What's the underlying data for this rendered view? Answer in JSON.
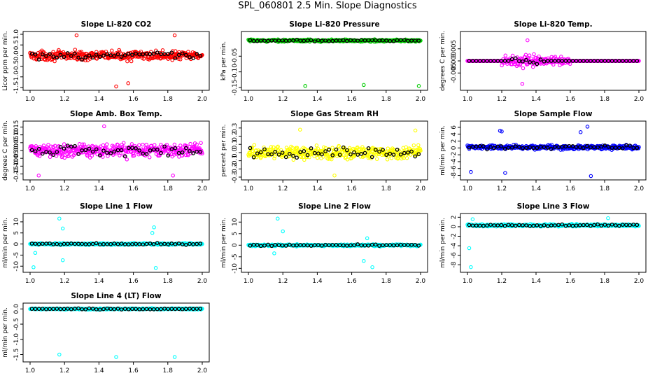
{
  "page": {
    "title": "SPL_060801  2.5 Min. Slope Diagnostics"
  },
  "colors": {
    "black": "#000000",
    "red": "#ff0000",
    "green": "#00cc00",
    "magenta": "#ff00ff",
    "yellow": "#ffff00",
    "blue": "#0000ff",
    "cyan": "#00ffff"
  },
  "chart_data": [
    {
      "type": "scatter",
      "title": "Slope Li-820 CO2",
      "ylabel": "Licor ppm per min.",
      "xlim": [
        1.0,
        2.0
      ],
      "ylim": [
        -1.5,
        1.0
      ],
      "xticks": [
        "1.0",
        "1.2",
        "1.4",
        "1.6",
        "1.8",
        "2.0"
      ],
      "yticks": [
        "-1.5",
        "-1.0",
        "-0.5",
        "0.0",
        "0.5",
        "1.0"
      ],
      "series_color": "#ff0000",
      "center": 0.0,
      "spread": 0.3,
      "outliers": [
        [
          1.5,
          -1.45
        ],
        [
          1.27,
          0.95
        ],
        [
          1.84,
          0.95
        ],
        [
          1.57,
          -1.3
        ]
      ]
    },
    {
      "type": "scatter",
      "title": "Slope Li-820 Pressure",
      "ylabel": "kPa per min.",
      "xlim": [
        1.0,
        2.0
      ],
      "ylim": [
        -0.15,
        0.02
      ],
      "xticks": [
        "1.0",
        "1.2",
        "1.4",
        "1.6",
        "1.8",
        "2.0"
      ],
      "yticks": [
        "-0.15",
        "-0.10",
        "-0.05"
      ],
      "series_color": "#00cc00",
      "center": 0.0,
      "spread": 0.005,
      "outliers": [
        [
          1.33,
          -0.145
        ],
        [
          1.67,
          -0.142
        ],
        [
          1.99,
          -0.145
        ]
      ]
    },
    {
      "type": "scatter",
      "title": "Slope Li-820 Temp.",
      "ylabel": "degrees C per min.",
      "xlim": [
        1.0,
        2.0
      ],
      "ylim": [
        -0.011,
        0.011
      ],
      "xticks": [
        "1.0",
        "1.2",
        "1.4",
        "1.6",
        "1.8",
        "2.0"
      ],
      "yticks": [
        "-0.005",
        "0.000",
        "0.005"
      ],
      "series_color": "#ff00ff",
      "center": 0.0,
      "spread": 0.0,
      "active_range": [
        1.2,
        1.6
      ],
      "active_spread": 0.0035,
      "outliers": [
        [
          1.32,
          -0.0095
        ],
        [
          1.35,
          0.0085
        ]
      ]
    },
    {
      "type": "scatter",
      "title": "Slope Amb. Box Temp.",
      "ylabel": "degrees C per min.",
      "xlim": [
        1.0,
        2.0
      ],
      "ylim": [
        -0.17,
        0.17
      ],
      "xticks": [
        "1.0",
        "1.2",
        "1.4",
        "1.6",
        "1.8",
        "2.0"
      ],
      "yticks": [
        "-0.15",
        "-0.10",
        "-0.05",
        "0.00",
        "0.05",
        "0.10",
        "0.15"
      ],
      "series_color": "#ff00ff",
      "center": 0.0,
      "spread": 0.06,
      "outliers": [
        [
          1.05,
          -0.16
        ],
        [
          1.43,
          0.155
        ],
        [
          1.83,
          -0.16
        ]
      ]
    },
    {
      "type": "scatter",
      "title": "Slope Gas Stream RH",
      "ylabel": "percent per min.",
      "xlim": [
        1.0,
        2.0
      ],
      "ylim": [
        -0.3,
        0.35
      ],
      "xticks": [
        "1.0",
        "1.2",
        "1.4",
        "1.6",
        "1.8",
        "2.0"
      ],
      "yticks": [
        "-0.3",
        "-0.2",
        "-0.1",
        "0.0",
        "0.1",
        "0.2",
        "0.3"
      ],
      "series_color": "#ffff00",
      "center": 0.0,
      "spread": 0.11,
      "outliers": [
        [
          1.5,
          -0.28
        ],
        [
          1.3,
          0.28
        ],
        [
          1.97,
          0.27
        ]
      ]
    },
    {
      "type": "scatter",
      "title": "Slope Sample Flow",
      "ylabel": "ml/min per min.",
      "xlim": [
        1.0,
        2.0
      ],
      "ylim": [
        -8.5,
        7.0
      ],
      "xticks": [
        "1.0",
        "1.2",
        "1.4",
        "1.6",
        "1.8",
        "2.0"
      ],
      "yticks": [
        "-8",
        "-6",
        "-4",
        "-2",
        "0",
        "2",
        "4",
        "6"
      ],
      "series_color": "#0000ff",
      "center": 0.2,
      "spread": 0.9,
      "outliers": [
        [
          1.7,
          6.2
        ],
        [
          1.72,
          -8.2
        ],
        [
          1.19,
          5.0
        ],
        [
          1.2,
          4.8
        ],
        [
          1.02,
          -7.0
        ],
        [
          1.22,
          -7.3
        ],
        [
          1.66,
          4.6
        ]
      ]
    },
    {
      "type": "scatter",
      "title": "Slope Line 1 Flow",
      "ylabel": "ml/min per min.",
      "xlim": [
        1.0,
        2.0
      ],
      "ylim": [
        -11.5,
        12.5
      ],
      "xticks": [
        "1.0",
        "1.2",
        "1.4",
        "1.6",
        "1.8",
        "2.0"
      ],
      "yticks": [
        "-10",
        "-5",
        "0",
        "5",
        "10"
      ],
      "series_color": "#00ffff",
      "center": 0.0,
      "spread": 0.6,
      "outliers": [
        [
          1.17,
          11.5
        ],
        [
          1.19,
          7.0
        ],
        [
          1.72,
          7.5
        ],
        [
          1.71,
          5.0
        ],
        [
          1.02,
          -10.5
        ],
        [
          1.73,
          -10.8
        ],
        [
          1.19,
          -7.3
        ],
        [
          1.03,
          -4.0
        ]
      ]
    },
    {
      "type": "scatter",
      "title": "Slope Line 2 Flow",
      "ylabel": "ml/min per min.",
      "xlim": [
        1.0,
        2.0
      ],
      "ylim": [
        -10.5,
        12.5
      ],
      "xticks": [
        "1.0",
        "1.2",
        "1.4",
        "1.6",
        "1.8",
        "2.0"
      ],
      "yticks": [
        "-10",
        "-5",
        "0",
        "5",
        "10"
      ],
      "series_color": "#00ffff",
      "center": 0.0,
      "spread": 0.6,
      "outliers": [
        [
          1.17,
          11.5
        ],
        [
          1.2,
          6.0
        ],
        [
          1.72,
          -9.5
        ],
        [
          1.67,
          -6.8
        ],
        [
          1.15,
          -3.5
        ],
        [
          1.69,
          3.0
        ]
      ]
    },
    {
      "type": "scatter",
      "title": "Slope Line 3 Flow",
      "ylabel": "ml/min per min.",
      "xlim": [
        1.0,
        2.0
      ],
      "ylim": [
        -9.0,
        2.2
      ],
      "xticks": [
        "1.0",
        "1.2",
        "1.4",
        "1.6",
        "1.8",
        "2.0"
      ],
      "yticks": [
        "-8",
        "-6",
        "-4",
        "-2",
        "0",
        "2"
      ],
      "series_color": "#00ffff",
      "center": 0.3,
      "spread": 0.35,
      "outliers": [
        [
          1.02,
          -8.5
        ],
        [
          1.01,
          -4.5
        ],
        [
          1.82,
          1.8
        ],
        [
          1.03,
          1.6
        ]
      ]
    },
    {
      "type": "scatter",
      "title": "Slope Line 4 (LT) Flow",
      "ylabel": "ml/min per min.",
      "xlim": [
        1.0,
        2.0
      ],
      "ylim": [
        -1.65,
        0.1
      ],
      "xticks": [
        "1.0",
        "1.2",
        "1.4",
        "1.6",
        "1.8",
        "2.0"
      ],
      "yticks": [
        "-1.5",
        "-1.0",
        "-0.5",
        "0.0"
      ],
      "series_color": "#00ffff",
      "center": 0.0,
      "spread": 0.03,
      "outliers": [
        [
          1.17,
          -1.5
        ],
        [
          1.5,
          -1.58
        ],
        [
          1.84,
          -1.58
        ]
      ]
    }
  ]
}
